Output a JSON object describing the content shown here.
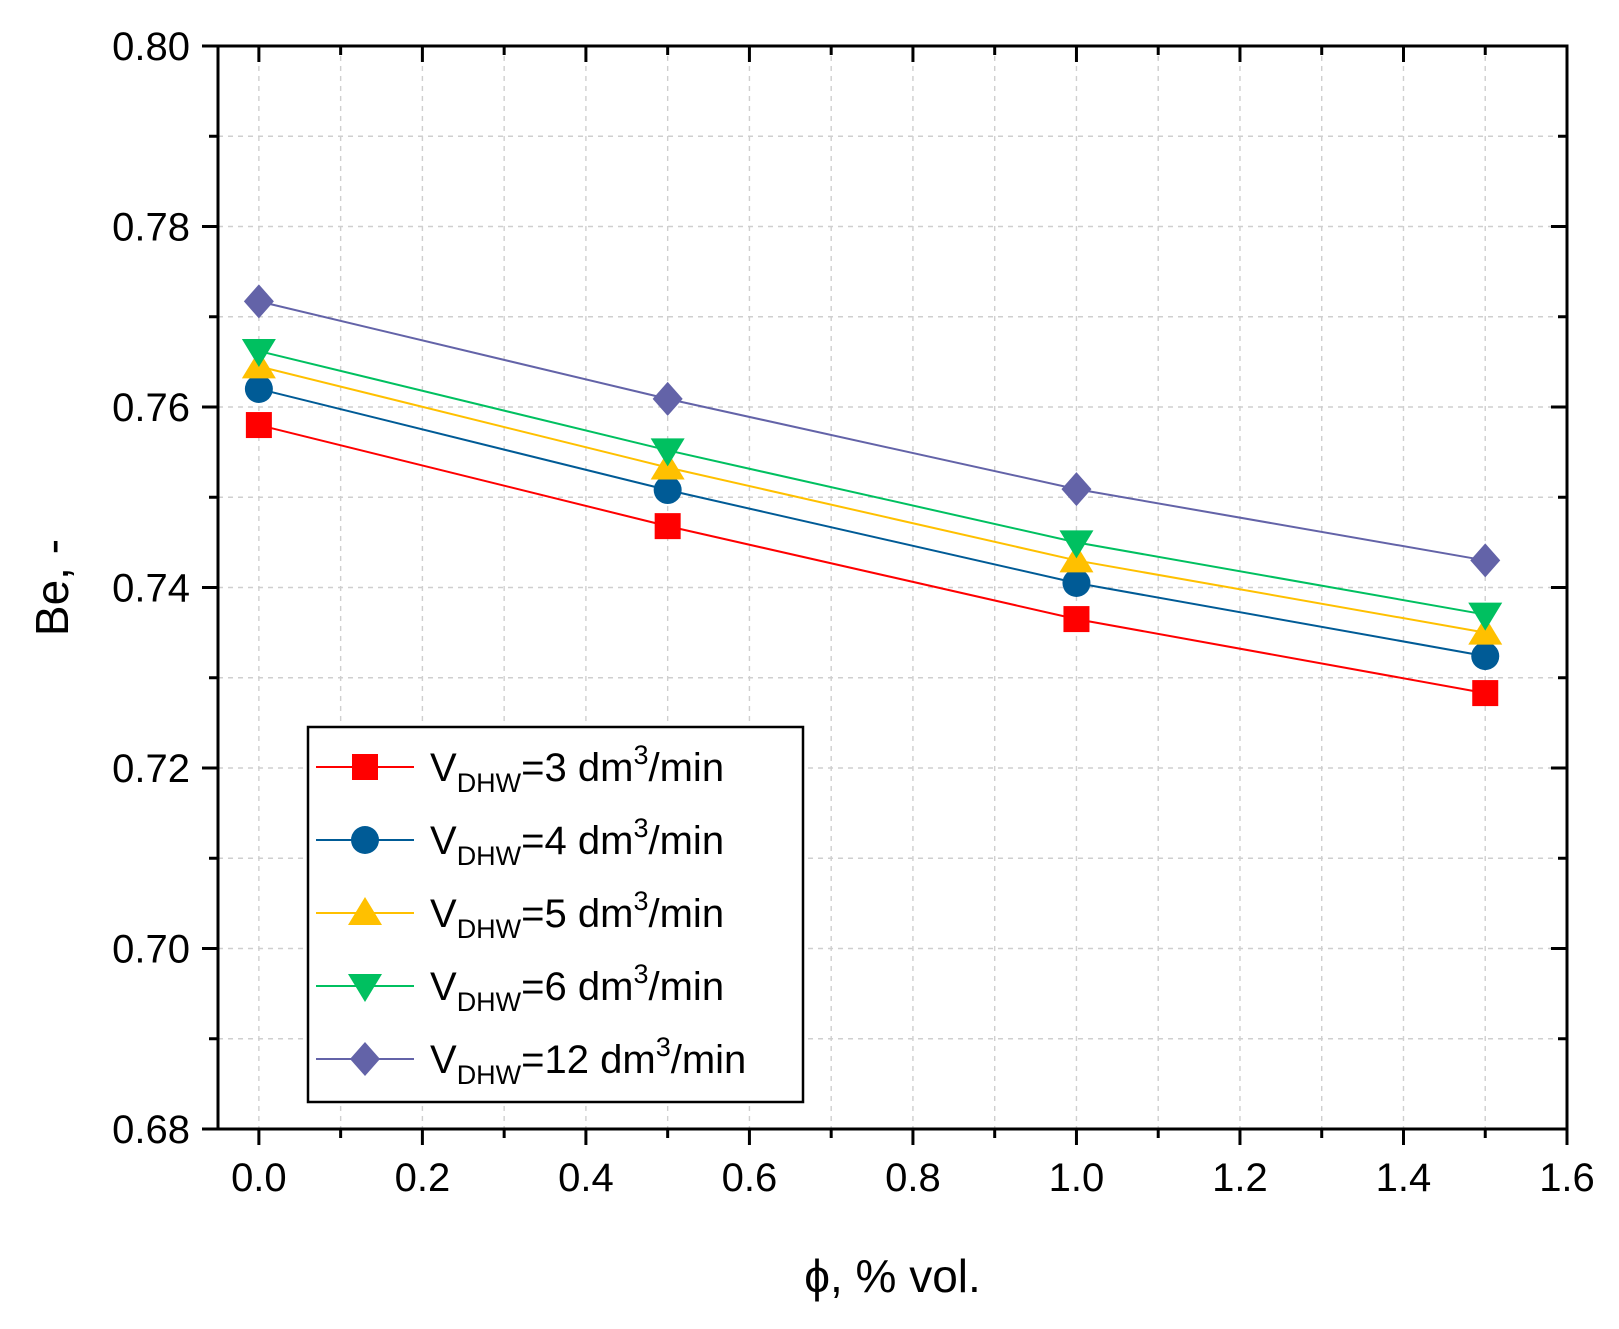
{
  "chart_data": {
    "type": "line",
    "title": "",
    "xlabel": "ϕ, % vol.",
    "ylabel": "Be, -",
    "xlim": [
      -0.05,
      1.6
    ],
    "ylim": [
      0.68,
      0.8
    ],
    "grid": true,
    "x_ticks": [
      0.0,
      0.2,
      0.4,
      0.6,
      0.8,
      1.0,
      1.2,
      1.4,
      1.6
    ],
    "x_tick_labels": [
      "0.0",
      "0.2",
      "0.4",
      "0.6",
      "0.8",
      "1.0",
      "1.2",
      "1.4",
      "1.6"
    ],
    "y_ticks": [
      0.68,
      0.7,
      0.72,
      0.74,
      0.76,
      0.78,
      0.8
    ],
    "y_tick_labels": [
      "0.68",
      "0.70",
      "0.72",
      "0.74",
      "0.76",
      "0.78",
      "0.80"
    ],
    "x": [
      0.0,
      0.5,
      1.0,
      1.5
    ],
    "legend_position": "bottom-left",
    "series": [
      {
        "name": "VDHW=3 dm3/min",
        "legend": {
          "main": "V",
          "sub": "DHW",
          "pre": "=3 dm",
          "sup": "3",
          "post": "/min"
        },
        "color": "#ff0000",
        "marker": "square",
        "values": [
          0.758,
          0.7468,
          0.7365,
          0.7283
        ]
      },
      {
        "name": "VDHW=4 dm3/min",
        "legend": {
          "main": "V",
          "sub": "DHW",
          "pre": "=4 dm",
          "sup": "3",
          "post": "/min"
        },
        "color": "#005b96",
        "marker": "circle",
        "values": [
          0.762,
          0.7508,
          0.7405,
          0.7324
        ]
      },
      {
        "name": "VDHW=5 dm3/min",
        "legend": {
          "main": "V",
          "sub": "DHW",
          "pre": "=5 dm",
          "sup": "3",
          "post": "/min"
        },
        "color": "#ffc000",
        "marker": "triangle-up",
        "values": [
          0.7645,
          0.7533,
          0.743,
          0.735
        ]
      },
      {
        "name": "VDHW=6 dm3/min",
        "legend": {
          "main": "V",
          "sub": "DHW",
          "pre": "=6 dm",
          "sup": "3",
          "post": "/min"
        },
        "color": "#00c060",
        "marker": "triangle-down",
        "values": [
          0.7662,
          0.7552,
          0.745,
          0.737
        ]
      },
      {
        "name": "VDHW=12 dm3/min",
        "legend": {
          "main": "V",
          "sub": "DHW",
          "pre": "=12 dm",
          "sup": "3",
          "post": "/min"
        },
        "color": "#6363a8",
        "marker": "diamond",
        "values": [
          0.7717,
          0.7609,
          0.7509,
          0.743
        ]
      }
    ]
  }
}
